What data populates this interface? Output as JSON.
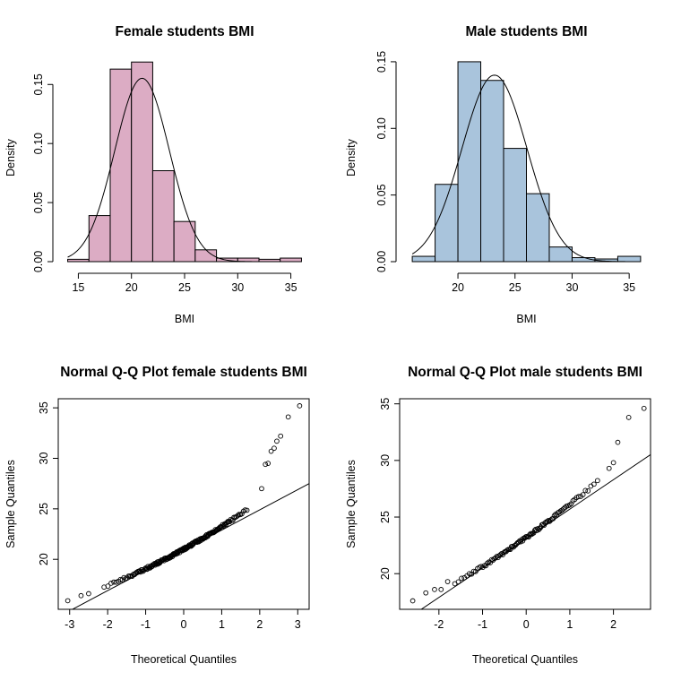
{
  "chart_data": [
    {
      "type": "bar",
      "subtype": "histogram",
      "title": "Female students BMI",
      "xlabel": "BMI",
      "ylabel": "Density",
      "bar_color": "#dcacc4",
      "bins": [
        {
          "x0": 14,
          "x1": 16,
          "density": 0.002
        },
        {
          "x0": 16,
          "x1": 18,
          "density": 0.039
        },
        {
          "x0": 18,
          "x1": 20,
          "density": 0.163
        },
        {
          "x0": 20,
          "x1": 22,
          "density": 0.169
        },
        {
          "x0": 22,
          "x1": 24,
          "density": 0.077
        },
        {
          "x0": 24,
          "x1": 26,
          "density": 0.034
        },
        {
          "x0": 26,
          "x1": 28,
          "density": 0.01
        },
        {
          "x0": 28,
          "x1": 30,
          "density": 0.003
        },
        {
          "x0": 30,
          "x1": 32,
          "density": 0.003
        },
        {
          "x0": 32,
          "x1": 34,
          "density": 0.002
        },
        {
          "x0": 34,
          "x1": 36,
          "density": 0.003
        }
      ],
      "density_curve": {
        "mean": 21.0,
        "sd": 2.57
      },
      "xticks": [
        15,
        20,
        25,
        30,
        35
      ],
      "yticks": [
        0.0,
        0.05,
        0.1,
        0.15
      ],
      "ytick_labels": [
        "0.00",
        "0.05",
        "0.10",
        "0.15"
      ],
      "xlim": [
        13.7,
        36.3
      ],
      "ylim": [
        0,
        0.176
      ],
      "grid": false,
      "legend": "none"
    },
    {
      "type": "bar",
      "subtype": "histogram",
      "title": "Male students BMI",
      "xlabel": "BMI",
      "ylabel": "Density",
      "bar_color": "#a9c4dc",
      "bins": [
        {
          "x0": 16,
          "x1": 18,
          "density": 0.004
        },
        {
          "x0": 18,
          "x1": 20,
          "density": 0.058
        },
        {
          "x0": 20,
          "x1": 22,
          "density": 0.15
        },
        {
          "x0": 22,
          "x1": 24,
          "density": 0.136
        },
        {
          "x0": 24,
          "x1": 26,
          "density": 0.085
        },
        {
          "x0": 26,
          "x1": 28,
          "density": 0.051
        },
        {
          "x0": 28,
          "x1": 30,
          "density": 0.011
        },
        {
          "x0": 30,
          "x1": 32,
          "density": 0.003
        },
        {
          "x0": 32,
          "x1": 34,
          "density": 0.002
        },
        {
          "x0": 34,
          "x1": 36,
          "density": 0.004
        }
      ],
      "density_curve": {
        "mean": 23.2,
        "sd": 2.85
      },
      "xticks": [
        20,
        25,
        30,
        35
      ],
      "yticks": [
        0.0,
        0.05,
        0.1,
        0.15
      ],
      "ytick_labels": [
        "0.00",
        "0.05",
        "0.10",
        "0.15"
      ],
      "xlim": [
        15.6,
        36.4
      ],
      "ylim": [
        0,
        0.156
      ],
      "grid": false,
      "legend": "none"
    },
    {
      "type": "scatter",
      "subtype": "qqplot",
      "title": "Normal Q-Q Plot female students BMI",
      "xlabel": "Theoretical Quantiles",
      "ylabel": "Sample Quantiles",
      "n_points": 200,
      "bulk": {
        "mean": 21.0,
        "sd": 2.1,
        "skew": 0.15
      },
      "tail_points": [
        {
          "x": -3.05,
          "y": 15.9
        },
        {
          "x": -2.7,
          "y": 16.4
        },
        {
          "x": -2.5,
          "y": 16.6
        },
        {
          "x": 2.05,
          "y": 27.0
        },
        {
          "x": 2.15,
          "y": 29.4
        },
        {
          "x": 2.22,
          "y": 29.5
        },
        {
          "x": 2.3,
          "y": 30.7
        },
        {
          "x": 2.38,
          "y": 31.0
        },
        {
          "x": 2.45,
          "y": 31.7
        },
        {
          "x": 2.55,
          "y": 32.2
        },
        {
          "x": 2.75,
          "y": 34.1
        },
        {
          "x": 3.05,
          "y": 35.2
        }
      ],
      "reference_line": {
        "intercept": 20.9,
        "slope": 2.0
      },
      "xticks": [
        -3,
        -2,
        -1,
        0,
        1,
        2,
        3
      ],
      "yticks": [
        20,
        25,
        30,
        35
      ],
      "xlim": [
        -3.3,
        3.3
      ],
      "ylim": [
        15.05,
        35.9
      ],
      "grid": false,
      "legend": "none"
    },
    {
      "type": "scatter",
      "subtype": "qqplot",
      "title": "Normal Q-Q Plot male students BMI",
      "xlabel": "Theoretical Quantiles",
      "ylabel": "Sample Quantiles",
      "n_points": 110,
      "bulk": {
        "mean": 23.2,
        "sd": 2.75,
        "skew": 0.12
      },
      "tail_points": [
        {
          "x": -2.6,
          "y": 17.6
        },
        {
          "x": -2.3,
          "y": 18.3
        },
        {
          "x": -2.1,
          "y": 18.6
        },
        {
          "x": -1.95,
          "y": 18.6
        },
        {
          "x": -1.8,
          "y": 19.3
        },
        {
          "x": 1.9,
          "y": 29.3
        },
        {
          "x": 2.0,
          "y": 29.8
        },
        {
          "x": 2.1,
          "y": 31.6
        },
        {
          "x": 2.35,
          "y": 33.8
        },
        {
          "x": 2.7,
          "y": 34.6
        }
      ],
      "reference_line": {
        "intercept": 23.1,
        "slope": 2.6
      },
      "xticks": [
        -2,
        -1,
        0,
        1,
        2
      ],
      "yticks": [
        20,
        25,
        30,
        35
      ],
      "xlim": [
        -2.9,
        2.85
      ],
      "ylim": [
        16.85,
        35.45
      ],
      "grid": false,
      "legend": "none"
    }
  ]
}
